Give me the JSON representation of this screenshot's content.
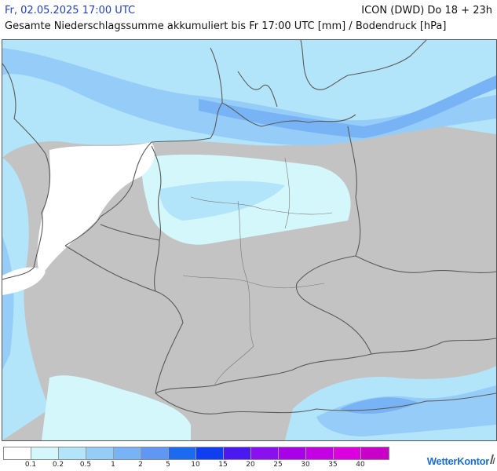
{
  "header": {
    "datetime": "Fr, 02.05.2025 17:00 UTC",
    "model_run": "ICON (DWD) Do 18 + 23h",
    "title": "Gesamte Niederschlagssumme akkumuliert bis Fr 17:00 UTC [mm] / Bodendruck [hPa]"
  },
  "map": {
    "icon": "precipitation-map",
    "colors": {
      "land": "#c3c3c3",
      "sea": "#ffffff",
      "border": "#5a5a5a",
      "coast": "#6e6e6e"
    }
  },
  "legend": {
    "colors": [
      "#ffffff",
      "#d4f7fb",
      "#b3e5fa",
      "#96cdf8",
      "#78b3f5",
      "#5f97f2",
      "#1c6af0",
      "#0f3df0",
      "#4b18f0",
      "#8a10f0",
      "#a800e8",
      "#c400e4",
      "#dc00e0",
      "#c800c8"
    ],
    "labels": [
      "0.1",
      "0.2",
      "0.5",
      "1",
      "2",
      "5",
      "10",
      "15",
      "20",
      "25",
      "30",
      "35",
      "40"
    ]
  },
  "brand": {
    "name": "WetterKontor"
  }
}
